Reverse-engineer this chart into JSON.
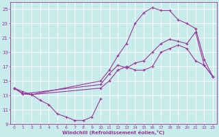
{
  "bg_color": "#c8ecec",
  "grid_color": "#ffffff",
  "line_color": "#993399",
  "xlabel": "Windchill (Refroidissement éolien,°C)",
  "xlim": [
    -0.5,
    23.5
  ],
  "ylim": [
    9,
    26
  ],
  "xticks": [
    0,
    1,
    2,
    3,
    4,
    5,
    6,
    7,
    8,
    9,
    10,
    11,
    12,
    13,
    14,
    15,
    16,
    17,
    18,
    19,
    20,
    21,
    22,
    23
  ],
  "yticks": [
    9,
    11,
    13,
    15,
    17,
    19,
    21,
    23,
    25
  ],
  "series": [
    {
      "x": [
        0,
        1,
        2,
        3,
        4,
        5,
        6,
        7,
        8,
        9,
        10
      ],
      "y": [
        14.0,
        13.5,
        13.1,
        12.3,
        11.7,
        10.4,
        10.0,
        9.5,
        9.5,
        10.0,
        12.5
      ]
    },
    {
      "x": [
        0,
        1,
        2,
        10,
        11,
        12,
        13,
        14,
        15,
        16,
        17,
        18,
        19,
        20,
        21,
        22,
        23
      ],
      "y": [
        14.0,
        13.2,
        13.1,
        14.0,
        15.0,
        16.5,
        17.0,
        16.5,
        16.5,
        17.0,
        19.0,
        19.5,
        20.0,
        19.5,
        17.8,
        17.2,
        15.6
      ]
    },
    {
      "x": [
        0,
        1,
        2,
        10,
        11,
        12,
        13,
        14,
        15,
        16,
        17,
        18,
        19,
        20,
        21,
        22,
        23
      ],
      "y": [
        14.0,
        13.2,
        13.1,
        15.0,
        16.5,
        18.5,
        20.2,
        23.0,
        24.5,
        25.2,
        24.8,
        24.8,
        23.5,
        23.0,
        22.3,
        18.0,
        15.6
      ]
    },
    {
      "x": [
        0,
        1,
        10,
        11,
        12,
        13,
        14,
        15,
        16,
        17,
        18,
        19,
        20,
        21,
        22,
        23
      ],
      "y": [
        14.0,
        13.2,
        14.5,
        16.0,
        17.2,
        16.8,
        17.5,
        17.8,
        19.0,
        20.2,
        20.8,
        20.5,
        20.2,
        21.8,
        17.2,
        15.6
      ]
    }
  ]
}
